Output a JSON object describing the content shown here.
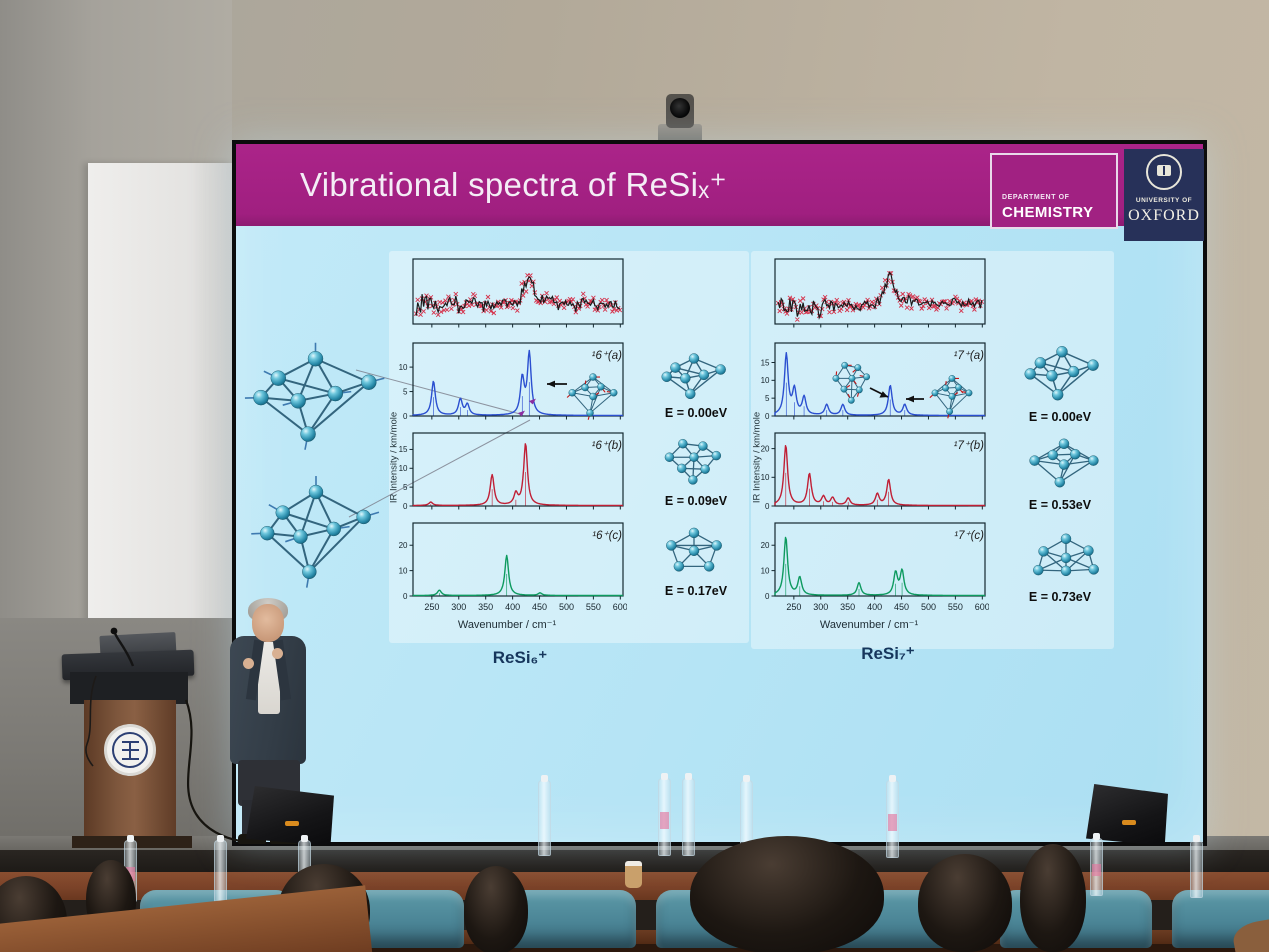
{
  "slide": {
    "title": "Vibrational spectra of ReSiₓ⁺",
    "logos": {
      "dept_line1": "DEPARTMENT OF",
      "dept_line2": "CHEMISTRY",
      "univ_line1": "UNIVERSITY OF",
      "univ_line2": "OXFORD"
    },
    "columns": [
      {
        "footer": "ReSi₆⁺",
        "ylabel": "IR Intensity / km/mole",
        "xlabel": "Wavenumber / cm⁻¹",
        "isomers": [
          {
            "label": "¹6⁺(a)",
            "energy": "E = 0.00eV"
          },
          {
            "label": "¹6⁺(b)",
            "energy": "E = 0.09eV"
          },
          {
            "label": "¹6⁺(c)",
            "energy": "E = 0.17eV"
          }
        ]
      },
      {
        "footer": "ReSi₇⁺",
        "ylabel": "IR Intensity / km/mole",
        "xlabel": "Wavenumber / cm⁻¹",
        "isomers": [
          {
            "label": "¹7⁺(a)",
            "energy": "E = 0.00eV"
          },
          {
            "label": "¹7⁺(b)",
            "energy": "E = 0.53eV"
          },
          {
            "label": "¹7⁺(c)",
            "energy": "E = 0.73eV"
          }
        ]
      }
    ]
  },
  "chart_data": {
    "type": "line",
    "xlabel": "Wavenumber / cm⁻¹",
    "ylabel": "IR Intensity / km/mole",
    "x_range": [
      215,
      605
    ],
    "x_ticks": [
      250,
      300,
      350,
      400,
      450,
      500,
      550,
      600
    ],
    "spectra": [
      {
        "svg": "p6exp",
        "panel": "ReSi6+ experimental IR-MPD",
        "kind": "experimental",
        "seed": 20,
        "broad_peak_x": 430,
        "color": "#1a1a1a",
        "marker_color": "#d5102d"
      },
      {
        "svg": "p6a",
        "panel": "ReSi6+ isomer 16+(a)",
        "kind": "theory",
        "color": "#2b4fd0",
        "ymax": 13.5,
        "yticks": [
          0,
          5,
          10
        ],
        "peaks": [
          [
            253,
            7.0
          ],
          [
            303,
            3.3
          ],
          [
            316,
            2.2
          ],
          [
            418,
            7.4
          ],
          [
            431,
            12.6
          ]
        ]
      },
      {
        "svg": "p6b",
        "panel": "ReSi6+ isomer 16+(b)",
        "kind": "theory",
        "color": "#c01f35",
        "ymax": 17.5,
        "yticks": [
          0,
          5,
          10,
          15
        ],
        "peaks": [
          [
            248,
            0.9
          ],
          [
            362,
            8.1
          ],
          [
            406,
            3.0
          ],
          [
            424,
            16.4
          ]
        ]
      },
      {
        "svg": "p6c",
        "panel": "ReSi6+ isomer 16+(c)",
        "kind": "theory",
        "color": "#0d9a5f",
        "ymax": 26,
        "yticks": [
          0,
          10,
          20
        ],
        "peaks": [
          [
            264,
            2.1
          ],
          [
            389,
            15.8
          ],
          [
            451,
            1.0
          ]
        ],
        "xticklabels": true
      },
      {
        "svg": "p7exp",
        "panel": "ReSi7+ experimental IR-MPD",
        "kind": "experimental",
        "seed": 77,
        "broad_peak_x": 428,
        "color": "#1a1a1a",
        "marker_color": "#d5102d"
      },
      {
        "svg": "p7a",
        "panel": "ReSi7+ isomer 17+(a)",
        "kind": "theory",
        "color": "#2b4fd0",
        "ymax": 18.5,
        "yticks": [
          0,
          5,
          10,
          15
        ],
        "peaks": [
          [
            236,
            17
          ],
          [
            251,
            7
          ],
          [
            269,
            5
          ],
          [
            311,
            3
          ],
          [
            341,
            3
          ],
          [
            429,
            8.4
          ],
          [
            456,
            3
          ]
        ]
      },
      {
        "svg": "p7b",
        "panel": "ReSi7+ isomer 17+(b)",
        "kind": "theory",
        "color": "#c01f35",
        "ymax": 23,
        "yticks": [
          0,
          10,
          20
        ],
        "peaks": [
          [
            235,
            21
          ],
          [
            279,
            11
          ],
          [
            305,
            3
          ],
          [
            322,
            2.6
          ],
          [
            351,
            2.5
          ],
          [
            405,
            4
          ],
          [
            426,
            9
          ]
        ]
      },
      {
        "svg": "p7c",
        "panel": "ReSi7+ isomer 17+(c)",
        "kind": "theory",
        "color": "#0d9a5f",
        "ymax": 26,
        "yticks": [
          0,
          10,
          20
        ],
        "peaks": [
          [
            235,
            23
          ],
          [
            261,
            7
          ],
          [
            371,
            5
          ],
          [
            439,
            8.8
          ],
          [
            451,
            9.5
          ]
        ],
        "xticklabels": true
      }
    ]
  }
}
